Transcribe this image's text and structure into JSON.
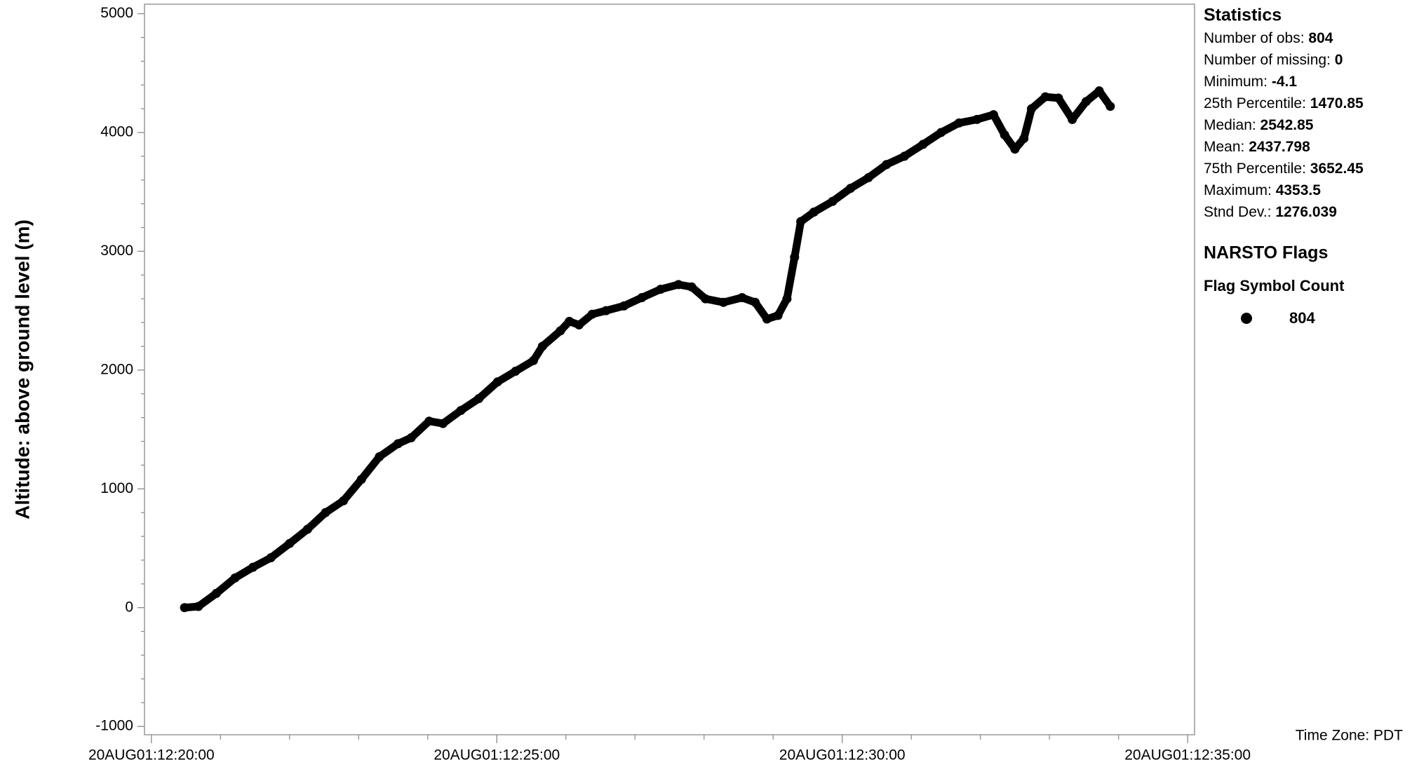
{
  "chart_data": {
    "type": "scatter",
    "y_label": "Altitude: above ground level (m)",
    "color": "#000000",
    "x": [
      20.48,
      20.68,
      20.94,
      21.21,
      21.47,
      21.73,
      22.0,
      22.26,
      22.52,
      22.78,
      23.04,
      23.3,
      23.57,
      23.76,
      24.02,
      24.22,
      24.48,
      24.74,
      25.01,
      25.27,
      25.53,
      25.66,
      25.92,
      26.05,
      26.19,
      26.38,
      26.58,
      26.84,
      27.1,
      27.37,
      27.63,
      27.82,
      28.02,
      28.28,
      28.55,
      28.74,
      28.91,
      29.07,
      29.2,
      29.31,
      29.4,
      29.59,
      29.86,
      30.12,
      30.38,
      30.64,
      30.9,
      31.17,
      31.43,
      31.69,
      31.95,
      32.19,
      32.35,
      32.5,
      32.63,
      32.74,
      32.94,
      33.13,
      33.33,
      33.53,
      33.72,
      33.88
    ],
    "values": [
      0,
      10,
      120,
      250,
      340,
      420,
      540,
      660,
      800,
      900,
      1080,
      1270,
      1380,
      1430,
      1570,
      1550,
      1660,
      1760,
      1900,
      1990,
      2080,
      2200,
      2330,
      2410,
      2380,
      2470,
      2500,
      2540,
      2610,
      2680,
      2720,
      2700,
      2600,
      2570,
      2610,
      2570,
      2430,
      2460,
      2600,
      2950,
      3250,
      3330,
      3420,
      3530,
      3620,
      3730,
      3800,
      3900,
      4000,
      4080,
      4110,
      4150,
      3980,
      3860,
      3950,
      4200,
      4300,
      4290,
      4110,
      4260,
      4350,
      4220
    ],
    "xlim": [
      19.9,
      35.1
    ],
    "xticks": [
      {
        "value": 20,
        "label": "20AUG01:12:20:00"
      },
      {
        "value": 25,
        "label": "20AUG01:12:25:00"
      },
      {
        "value": 30,
        "label": "20AUG01:12:30:00"
      },
      {
        "value": 35,
        "label": "20AUG01:12:35:00"
      }
    ],
    "xminor_ticks": [
      21,
      22,
      23,
      24,
      26,
      27,
      28,
      29,
      31,
      32,
      33,
      34
    ],
    "ylim": [
      -1070,
      5080
    ],
    "yticks": [
      -1000,
      0,
      1000,
      2000,
      3000,
      4000,
      5000
    ],
    "yminor_ticks": [
      -800,
      -600,
      -400,
      -200,
      200,
      400,
      600,
      800,
      1200,
      1400,
      1600,
      1800,
      2200,
      2400,
      2600,
      2800,
      3200,
      3400,
      3600,
      3800,
      4200,
      4400,
      4600,
      4800
    ],
    "statistics": {
      "title": "Statistics",
      "items": [
        {
          "label": "Number of obs: ",
          "value": "804"
        },
        {
          "label": "Number of missing: ",
          "value": "0"
        },
        {
          "label": "Minimum: ",
          "value": "-4.1"
        },
        {
          "label": "25th Percentile: ",
          "value": "1470.85"
        },
        {
          "label": "Median: ",
          "value": "2542.85"
        },
        {
          "label": "Mean: ",
          "value": "2437.798"
        },
        {
          "label": "75th Percentile: ",
          "value": "3652.45"
        },
        {
          "label": "Maximum: ",
          "value": "4353.5"
        },
        {
          "label": "Stnd Dev.: ",
          "value": "1276.039"
        }
      ]
    },
    "flags": {
      "title": "NARSTO Flags",
      "header": "Flag Symbol Count",
      "count": "804"
    },
    "time_zone": "Time Zone: PDT"
  }
}
